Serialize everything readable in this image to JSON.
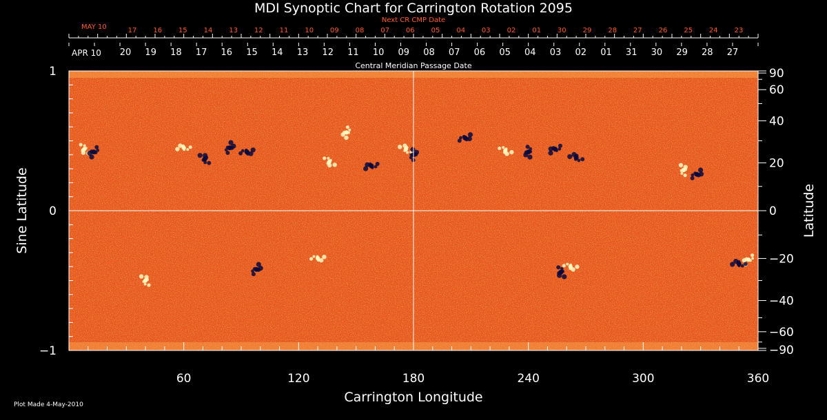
{
  "chart_data": {
    "type": "heatmap",
    "title": "MDI Synoptic Chart for Carrington Rotation 2095",
    "xlabel": "Carrington Longitude",
    "ylabel_left": "Sine Latitude",
    "ylabel_right": "Latitude",
    "xlim": [
      0,
      360
    ],
    "ylim": [
      -1,
      1
    ],
    "x_ticks": [
      60,
      120,
      180,
      240,
      300,
      360
    ],
    "x_tick_labels": [
      "60",
      "120",
      "180",
      "240",
      "300",
      "360"
    ],
    "y_left_ticks": [
      1,
      0,
      -1
    ],
    "y_left_tick_labels": [
      "1",
      "0",
      "−1"
    ],
    "y_right_ticks": [
      90,
      60,
      40,
      20,
      0,
      -20,
      -40,
      -60,
      -90
    ],
    "y_right_tick_labels": [
      "90",
      "60",
      "40",
      "20",
      "0",
      "−20",
      "−40",
      "−60",
      "−90"
    ],
    "top_axis_caption": "Central Meridian Passage Date",
    "top_axis_start_label": "APR 10",
    "top_axis_dates": [
      "20",
      "19",
      "18",
      "17",
      "16",
      "15",
      "14",
      "13",
      "12",
      "11",
      "10",
      "09",
      "08",
      "07",
      "06",
      "05",
      "04",
      "03",
      "02",
      "01",
      "31",
      "30",
      "29",
      "28",
      "27"
    ],
    "next_cr_caption": "Next CR CMP Date",
    "next_cr_start_label": "MAY 10",
    "next_cr_dates": [
      "17",
      "16",
      "15",
      "14",
      "13",
      "12",
      "11",
      "10",
      "09",
      "08",
      "07",
      "06",
      "05",
      "04",
      "03",
      "02",
      "01",
      "30",
      "29",
      "28",
      "27",
      "26",
      "25",
      "24",
      "23"
    ],
    "reference_lines": {
      "longitude": 180,
      "sine_latitude": 0
    },
    "colors": {
      "background": "#e8561c",
      "positive_flux": "#fff8c0",
      "negative_flux": "#0a0a3c",
      "next_cr_text": "#ff5a2a"
    },
    "magnetic_regions": [
      {
        "lon": 8,
        "sinlat": 0.44,
        "polarity": "positive"
      },
      {
        "lon": 13,
        "sinlat": 0.42,
        "polarity": "negative"
      },
      {
        "lon": 60,
        "sinlat": 0.45,
        "polarity": "positive"
      },
      {
        "lon": 71,
        "sinlat": 0.37,
        "polarity": "negative"
      },
      {
        "lon": 84,
        "sinlat": 0.45,
        "polarity": "negative"
      },
      {
        "lon": 93,
        "sinlat": 0.42,
        "polarity": "negative"
      },
      {
        "lon": 136,
        "sinlat": 0.35,
        "polarity": "positive"
      },
      {
        "lon": 145,
        "sinlat": 0.56,
        "polarity": "positive"
      },
      {
        "lon": 158,
        "sinlat": 0.32,
        "polarity": "negative"
      },
      {
        "lon": 176,
        "sinlat": 0.44,
        "polarity": "positive"
      },
      {
        "lon": 180,
        "sinlat": 0.4,
        "polarity": "negative"
      },
      {
        "lon": 207,
        "sinlat": 0.52,
        "polarity": "negative"
      },
      {
        "lon": 228,
        "sinlat": 0.43,
        "polarity": "positive"
      },
      {
        "lon": 240,
        "sinlat": 0.42,
        "polarity": "negative"
      },
      {
        "lon": 254,
        "sinlat": 0.44,
        "polarity": "negative"
      },
      {
        "lon": 265,
        "sinlat": 0.38,
        "polarity": "negative"
      },
      {
        "lon": 321,
        "sinlat": 0.29,
        "polarity": "positive"
      },
      {
        "lon": 328,
        "sinlat": 0.26,
        "polarity": "negative"
      },
      {
        "lon": 262,
        "sinlat": -0.4,
        "polarity": "positive"
      },
      {
        "lon": 257,
        "sinlat": -0.44,
        "polarity": "negative"
      },
      {
        "lon": 355,
        "sinlat": -0.35,
        "polarity": "positive"
      },
      {
        "lon": 350,
        "sinlat": -0.38,
        "polarity": "negative"
      },
      {
        "lon": 40,
        "sinlat": -0.5,
        "polarity": "positive"
      },
      {
        "lon": 98,
        "sinlat": -0.42,
        "polarity": "negative"
      },
      {
        "lon": 130,
        "sinlat": -0.34,
        "polarity": "positive"
      }
    ]
  },
  "footer": {
    "plot_made": "Plot Made  4-May-2010"
  }
}
